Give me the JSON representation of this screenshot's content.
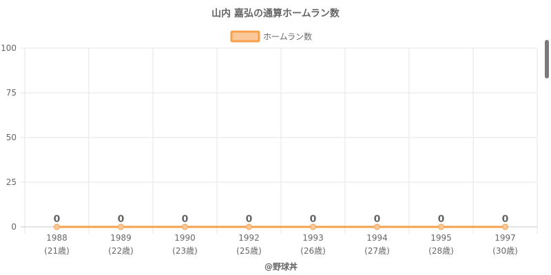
{
  "chart_data": {
    "type": "line",
    "title": "山内 嘉弘の通算ホームラン数",
    "legend": {
      "label": "ホームラン数",
      "placement": "top-center"
    },
    "categories": [
      "1988",
      "1989",
      "1990",
      "1992",
      "1993",
      "1994",
      "1995",
      "1997"
    ],
    "category_sublabels": [
      "(21歳)",
      "(22歳)",
      "(23歳)",
      "(25歳)",
      "(26歳)",
      "(27歳)",
      "(28歳)",
      "(30歳)"
    ],
    "series": [
      {
        "name": "ホームラン数",
        "values": [
          0,
          0,
          0,
          0,
          0,
          0,
          0,
          0
        ]
      }
    ],
    "ylim": [
      0,
      100
    ],
    "yticks": [
      0,
      25,
      50,
      75,
      100
    ],
    "grid": true,
    "xlabel": "@野球丼",
    "ylabel": ""
  },
  "colors": {
    "series_line": "#f7a04b",
    "series_fill": "#fbc89a",
    "grid": "#e6e6e6",
    "axis": "#c8c8c8",
    "text": "#666666",
    "data_label": "#666666"
  }
}
